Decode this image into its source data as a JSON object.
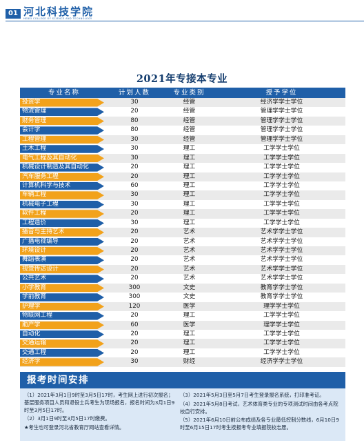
{
  "header": {
    "page_number": "01",
    "logo_cn": "河北科技学院",
    "logo_en": "HEBEI COLLEGE OF SCIENCE AND TECHNOLOGY"
  },
  "title": "2021年专接本专业",
  "table": {
    "columns": [
      "专业名称",
      "计划人数",
      "专业类别",
      "授予学位"
    ],
    "rows": [
      {
        "major": "投资学",
        "plan": "30",
        "category": "经管",
        "degree": "经济学学士学位",
        "tag": "orange"
      },
      {
        "major": "物流管理",
        "plan": "20",
        "category": "经管",
        "degree": "管理学学士学位",
        "tag": "blue"
      },
      {
        "major": "财务管理",
        "plan": "80",
        "category": "经管",
        "degree": "管理学学士学位",
        "tag": "orange"
      },
      {
        "major": "会计学",
        "plan": "80",
        "category": "经管",
        "degree": "管理学学士学位",
        "tag": "blue"
      },
      {
        "major": "工程管理",
        "plan": "30",
        "category": "经管",
        "degree": "管理学学士学位",
        "tag": "orange"
      },
      {
        "major": "土木工程",
        "plan": "30",
        "category": "理工",
        "degree": "工学学士学位",
        "tag": "blue"
      },
      {
        "major": "电气工程及其自动化",
        "plan": "30",
        "category": "理工",
        "degree": "工学学士学位",
        "tag": "orange"
      },
      {
        "major": "机械设计制造及其自动化",
        "plan": "20",
        "category": "理工",
        "degree": "工学学士学位",
        "tag": "blue"
      },
      {
        "major": "汽车服务工程",
        "plan": "20",
        "category": "理工",
        "degree": "工学学士学位",
        "tag": "orange"
      },
      {
        "major": "计算机科学与技术",
        "plan": "60",
        "category": "理工",
        "degree": "工学学士学位",
        "tag": "blue"
      },
      {
        "major": "车辆工程",
        "plan": "30",
        "category": "理工",
        "degree": "工学学士学位",
        "tag": "orange"
      },
      {
        "major": "机械电子工程",
        "plan": "30",
        "category": "理工",
        "degree": "工学学士学位",
        "tag": "blue"
      },
      {
        "major": "软件工程",
        "plan": "20",
        "category": "理工",
        "degree": "工学学士学位",
        "tag": "orange"
      },
      {
        "major": "工程造价",
        "plan": "30",
        "category": "理工",
        "degree": "工学学士学位",
        "tag": "blue"
      },
      {
        "major": "播音与主持艺术",
        "plan": "20",
        "category": "艺术",
        "degree": "艺术学学士学位",
        "tag": "orange"
      },
      {
        "major": "广播电视编导",
        "plan": "20",
        "category": "艺术",
        "degree": "艺术学学士学位",
        "tag": "blue"
      },
      {
        "major": "环境设计",
        "plan": "20",
        "category": "艺术",
        "degree": "艺术学学士学位",
        "tag": "orange"
      },
      {
        "major": "舞蹈表演",
        "plan": "20",
        "category": "艺术",
        "degree": "艺术学学士学位",
        "tag": "blue"
      },
      {
        "major": "视觉传达设计",
        "plan": "20",
        "category": "艺术",
        "degree": "艺术学学士学位",
        "tag": "orange"
      },
      {
        "major": "公共艺术",
        "plan": "20",
        "category": "艺术",
        "degree": "艺术学学士学位",
        "tag": "blue"
      },
      {
        "major": "小学教育",
        "plan": "300",
        "category": "文史",
        "degree": "教育学学士学位",
        "tag": "orange"
      },
      {
        "major": "学前教育",
        "plan": "300",
        "category": "文史",
        "degree": "教育学学士学位",
        "tag": "blue"
      },
      {
        "major": "护理学",
        "plan": "120",
        "category": "医学",
        "degree": "理学学士学位",
        "tag": "orange"
      },
      {
        "major": "物联网工程",
        "plan": "20",
        "category": "理工",
        "degree": "工学学士学位",
        "tag": "blue"
      },
      {
        "major": "助产学",
        "plan": "60",
        "category": "医学",
        "degree": "理学学士学位",
        "tag": "orange"
      },
      {
        "major": "自动化",
        "plan": "20",
        "category": "理工",
        "degree": "工学学士学位",
        "tag": "blue"
      },
      {
        "major": "交通运输",
        "plan": "20",
        "category": "理工",
        "degree": "工学学士学位",
        "tag": "orange"
      },
      {
        "major": "交通工程",
        "plan": "20",
        "category": "理工",
        "degree": "工学学士学位",
        "tag": "blue"
      },
      {
        "major": "经济学",
        "plan": "30",
        "category": "财经",
        "degree": "经济学学士学位",
        "tag": "orange"
      }
    ]
  },
  "schedule": {
    "title": "报考时间安排",
    "left_items": [
      "（1）2021年3月1日9时至3月5日17时，考生网上进行初次报名；基层服务项目人员和退役士兵考生为现场报名，报名时间为3月1日9时至3月5日17时。",
      "（2）3月1日9时至3月5日17时缴费。",
      "★考生也可登录河北省教育厅网站查看详情。"
    ],
    "right_items": [
      "（3）2021年5月3日至5月7日考生登录报名系统，打印准考证。",
      "（4）2021年5月8日考试，艺术体育类专业的专项测试时间由各考点院校自行安排。",
      "（5）2021年6月10日前公布成绩及各专业最低控制分数线，6月10日9时至6月15日17时考生按报考专业填报院校志愿。"
    ]
  },
  "colors": {
    "brand_blue": "#1f5fa8",
    "tag_orange": "#f2a21b",
    "schedule_bg": "#dbe8f6"
  }
}
